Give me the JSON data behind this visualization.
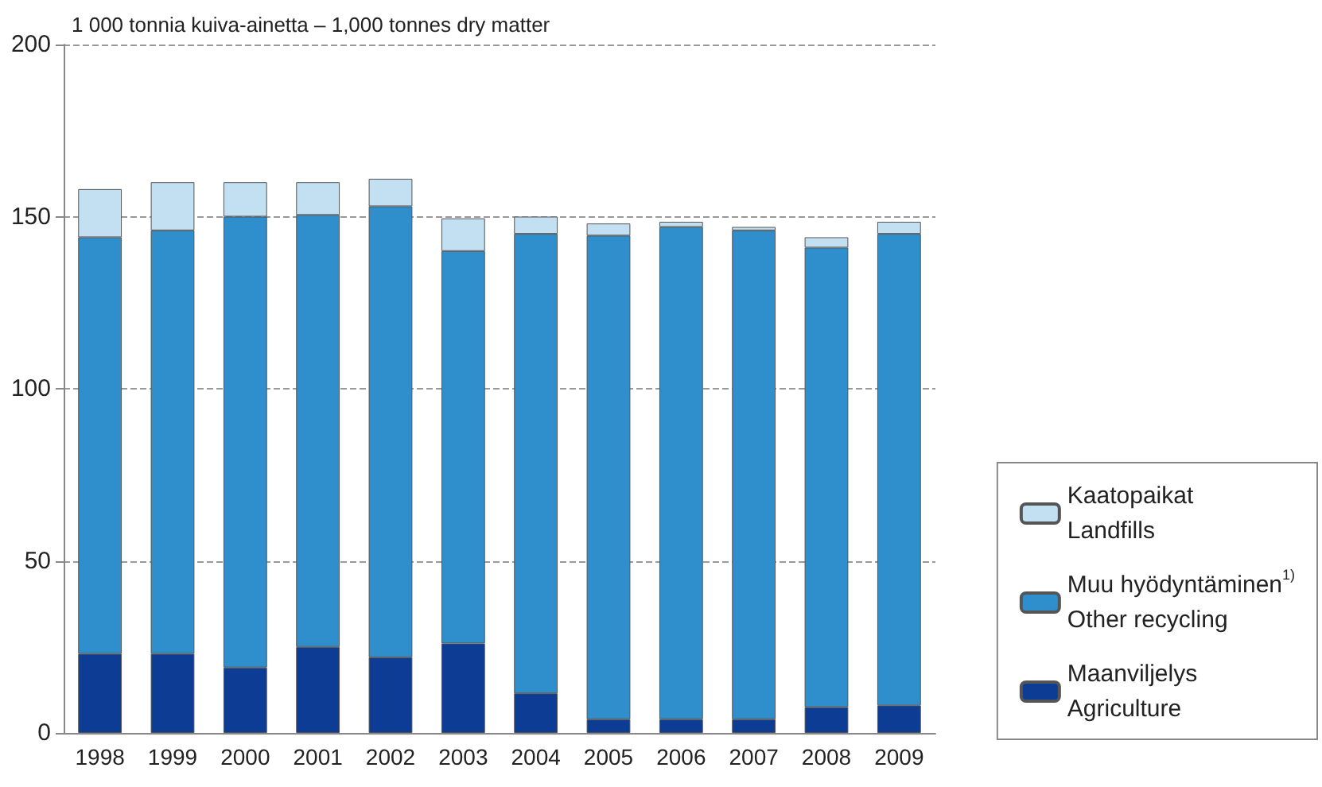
{
  "chart_data": {
    "type": "bar",
    "stacked": true,
    "ylabel": "1 000 tonnia kuiva-ainetta – 1,000 tonnes dry matter",
    "categories": [
      "1998",
      "1999",
      "2000",
      "2001",
      "2002",
      "2003",
      "2004",
      "2005",
      "2006",
      "2007",
      "2008",
      "2009"
    ],
    "series": [
      {
        "name": "Maanviljelys\nAgriculture",
        "color": "#0d3c94",
        "values": [
          23,
          23,
          19,
          25,
          22,
          26,
          11.5,
          4,
          4,
          4,
          7.5,
          8
        ]
      },
      {
        "name": "Muu hyödyntäminen$^{1)}$\nOther recycling",
        "color": "#2e8fcc",
        "values": [
          121,
          123,
          131,
          125.5,
          131,
          114,
          133.5,
          140.5,
          143,
          142,
          133.5,
          137
        ]
      },
      {
        "name": "Kaatopaikat\nLandfills",
        "color": "#c3dff2",
        "values": [
          14,
          14,
          10,
          9.5,
          8,
          9.5,
          5,
          3.5,
          1.5,
          1,
          3,
          3.5
        ]
      }
    ],
    "ylim": [
      0,
      200
    ],
    "yticks": [
      0,
      50,
      100,
      150,
      200
    ],
    "grid": "y",
    "legend": "bottom right"
  }
}
